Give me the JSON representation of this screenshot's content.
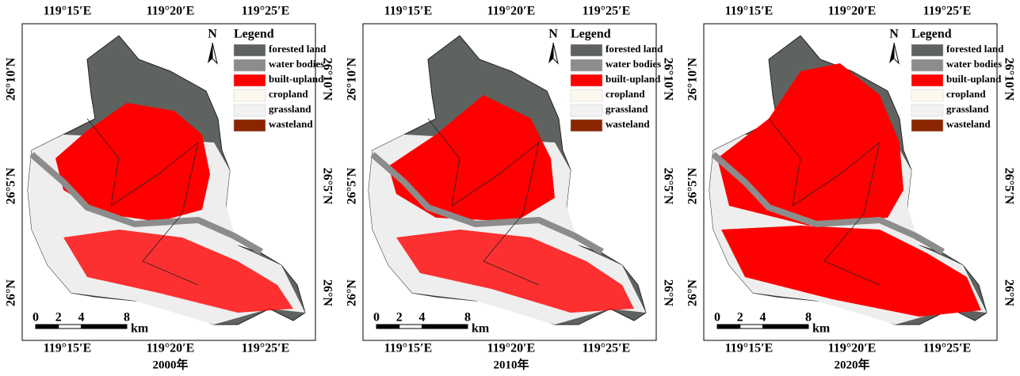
{
  "panels": [
    {
      "caption": "2000年",
      "top_lon": [
        "119°15′E",
        "119°20′E",
        "119°25′E"
      ],
      "bottom_lon": [
        "119°15′E",
        "119°20′E",
        "119°25′E"
      ],
      "left_lat": [
        "26°10′N",
        "26°5′N",
        "26°N"
      ],
      "right_lat": [
        "26°10′N",
        "26°5′N",
        "26°N"
      ],
      "north": "N",
      "legend": {
        "title": "Legend",
        "items": [
          {
            "label": "forested land",
            "color": "#5f6360"
          },
          {
            "label": "water bodies",
            "color": "#8c8c8c"
          },
          {
            "label": "built-upland",
            "color": "#ff0000"
          },
          {
            "label": "cropland",
            "color": "#fdf8ee"
          },
          {
            "label": "grassland",
            "color": "#f2f2f2"
          },
          {
            "label": "wasteland",
            "color": "#8b2500"
          }
        ]
      },
      "scale": {
        "ticks": [
          0,
          2,
          4,
          8
        ],
        "unit": "km"
      }
    },
    {
      "caption": "2010年",
      "top_lon": [
        "119°15′E",
        "119°20′E",
        "119°25′E"
      ],
      "bottom_lon": [
        "119°15′E",
        "119°20′E",
        "119°25′E"
      ],
      "left_lat": [
        "26°10′N",
        "26°5′N",
        "26°N"
      ],
      "right_lat": [
        "26°10′N",
        "26°5′N",
        "26°N"
      ],
      "north": "N",
      "legend": {
        "title": "Legend",
        "items": [
          {
            "label": "forested land",
            "color": "#5f6360"
          },
          {
            "label": "water bodies",
            "color": "#8c8c8c"
          },
          {
            "label": "built-upland",
            "color": "#ff0000"
          },
          {
            "label": "cropland",
            "color": "#fdf8ee"
          },
          {
            "label": "grassland",
            "color": "#f2f2f2"
          },
          {
            "label": "wasteland",
            "color": "#8b2500"
          }
        ]
      },
      "scale": {
        "ticks": [
          0,
          2,
          4,
          8
        ],
        "unit": "km"
      }
    },
    {
      "caption": "2020年",
      "top_lon": [
        "119°15′E",
        "119°20′E",
        "119°25′E"
      ],
      "bottom_lon": [
        "119°15′E",
        "119°20′E",
        "119°25′E"
      ],
      "left_lat": [
        "26°10′N",
        "26°5′N",
        "26°N"
      ],
      "right_lat": [
        "26°10′N",
        "26°5′N",
        "26°N"
      ],
      "north": "N",
      "legend": {
        "title": "Legend",
        "items": [
          {
            "label": "forested land",
            "color": "#5f6360"
          },
          {
            "label": "water bodies",
            "color": "#8c8c8c"
          },
          {
            "label": "built-upland",
            "color": "#ff0000"
          },
          {
            "label": "cropland",
            "color": "#fdf8ee"
          },
          {
            "label": "grassland",
            "color": "#f2f2f2"
          },
          {
            "label": "wasteland",
            "color": "#8b2500"
          }
        ]
      },
      "scale": {
        "ticks": [
          0,
          2,
          4,
          8
        ],
        "unit": "km"
      }
    }
  ]
}
